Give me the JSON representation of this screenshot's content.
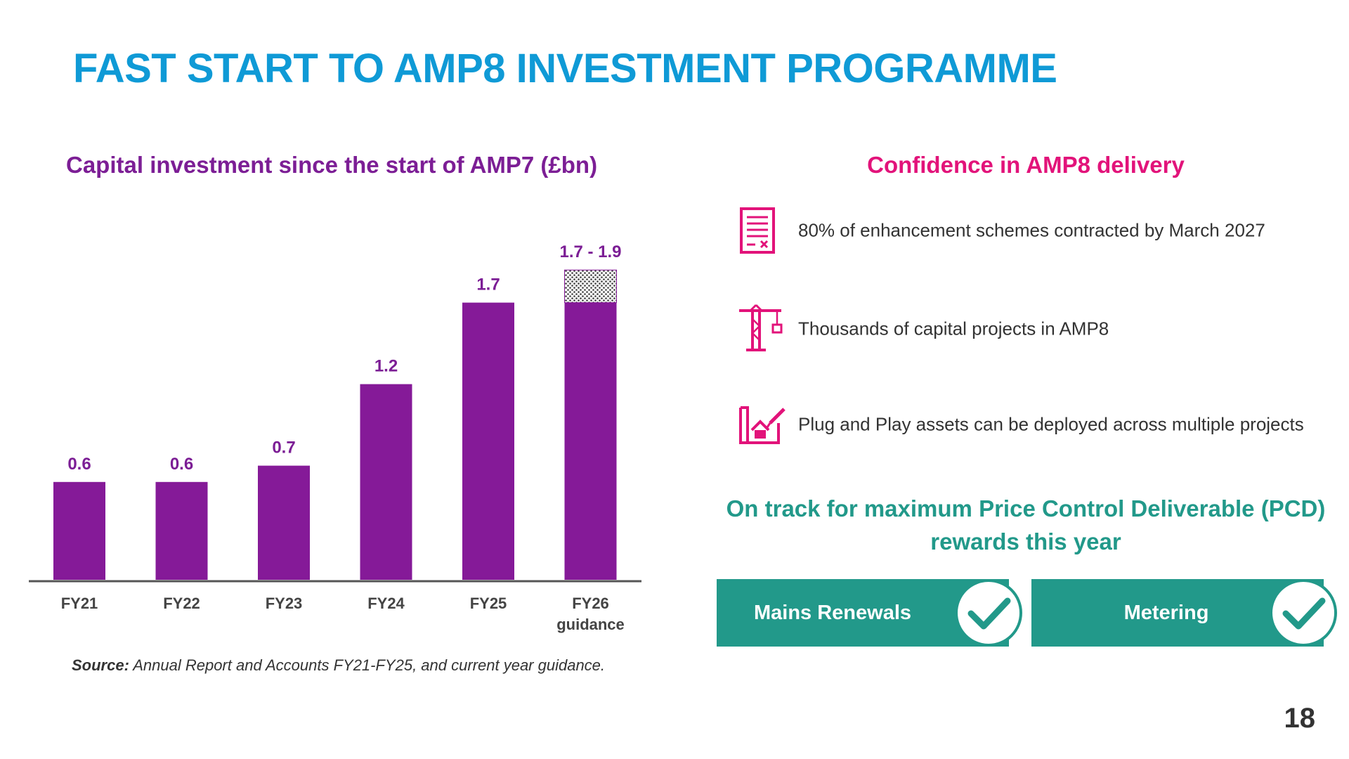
{
  "page": {
    "title": "FAST START TO AMP8 INVESTMENT PROGRAMME",
    "page_number": "18",
    "colors": {
      "title": "#0f9ad6",
      "bars": "#851a98",
      "confidence": "#e2137a",
      "teal": "#22998a"
    }
  },
  "chart_data": {
    "type": "bar",
    "title": "Capital investment since the start of AMP7 (£bn)",
    "categories": [
      "FY21",
      "FY22",
      "FY23",
      "FY24",
      "FY25",
      "FY26"
    ],
    "category_sublabels": [
      "",
      "",
      "",
      "",
      "",
      "guidance"
    ],
    "values": [
      0.6,
      0.6,
      0.7,
      1.2,
      1.7,
      1.7
    ],
    "range_top": [
      null,
      null,
      null,
      null,
      null,
      1.9
    ],
    "data_labels": [
      "0.6",
      "0.6",
      "0.7",
      "1.2",
      "1.7",
      "1.7 - 1.9"
    ],
    "ylim": [
      0,
      2.0
    ],
    "grid": false,
    "legend": "none",
    "source_label": "Source:",
    "source_text": " Annual Report and Accounts FY21-FY25, and current year guidance."
  },
  "confidence": {
    "title": "Confidence in AMP8 delivery",
    "items": [
      {
        "icon": "contract-document-icon",
        "text": "80% of enhancement schemes contracted by March 2027"
      },
      {
        "icon": "construction-crane-icon",
        "text": "Thousands of capital projects in AMP8"
      },
      {
        "icon": "house-plan-icon",
        "text": "Plug and Play assets can be deployed across multiple projects"
      }
    ]
  },
  "pcd": {
    "title_line1": "On track for maximum Price Control Deliverable (PCD)",
    "title_line2": "rewards this year",
    "boxes": [
      {
        "label": "Mains Renewals",
        "icon": "checkmark-icon"
      },
      {
        "label": "Metering",
        "icon": "checkmark-icon"
      }
    ]
  }
}
